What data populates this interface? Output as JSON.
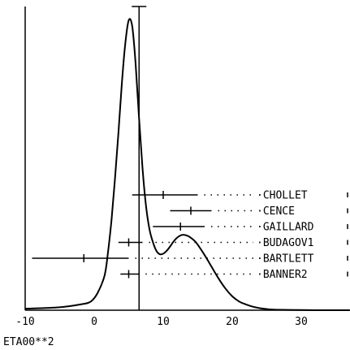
{
  "chart_data": {
    "type": "line",
    "xlabel": "ETA00**2",
    "ylabel": "",
    "xlim": [
      -10,
      37
    ],
    "ylim": [
      0,
      1.05
    ],
    "x_ticks": [
      "-10",
      "0",
      "10",
      "20",
      "30"
    ],
    "x_tick_values": [
      -10,
      0,
      10,
      20,
      30
    ],
    "vertical_line_x": 6.5,
    "curve": {
      "x": [
        -10,
        -5,
        -2,
        -0.5,
        0.5,
        1.5,
        2,
        2.5,
        3,
        3.5,
        4,
        4.5,
        5,
        5.5,
        6,
        6.5,
        7,
        7.5,
        8,
        8.5,
        9,
        9.5,
        10,
        10.5,
        11,
        11.5,
        12,
        12.5,
        13,
        13.5,
        14,
        14.5,
        15,
        16,
        17,
        18,
        19,
        20,
        21,
        22,
        23,
        24,
        25,
        26,
        28,
        32,
        37
      ],
      "y": [
        0.005,
        0.01,
        0.02,
        0.03,
        0.06,
        0.12,
        0.2,
        0.31,
        0.45,
        0.61,
        0.78,
        0.92,
        1.0,
        0.98,
        0.85,
        0.66,
        0.49,
        0.36,
        0.28,
        0.235,
        0.205,
        0.193,
        0.195,
        0.205,
        0.22,
        0.237,
        0.25,
        0.258,
        0.26,
        0.257,
        0.25,
        0.24,
        0.226,
        0.19,
        0.15,
        0.11,
        0.075,
        0.048,
        0.03,
        0.02,
        0.012,
        0.007,
        0.004,
        0.002,
        0.001,
        0.0,
        0.0
      ]
    },
    "intervals": [
      {
        "label": "·CHOLLET",
        "low": 5.5,
        "mid": 10,
        "high": 15
      },
      {
        "label": "·CENCE",
        "low": 11,
        "mid": 14,
        "high": 17
      },
      {
        "label": "·GAILLARD",
        "low": 8.5,
        "mid": 12.5,
        "high": 16
      },
      {
        "label": "·BUDAGOV1",
        "low": 3.5,
        "mid": 5,
        "high": 7
      },
      {
        "label": "·BARTLETT",
        "low": -9,
        "mid": -1.5,
        "high": 5
      },
      {
        "label": "·BANNER2",
        "low": 3.8,
        "mid": 5,
        "high": 6.5
      }
    ],
    "grid": false,
    "legend": "none"
  }
}
